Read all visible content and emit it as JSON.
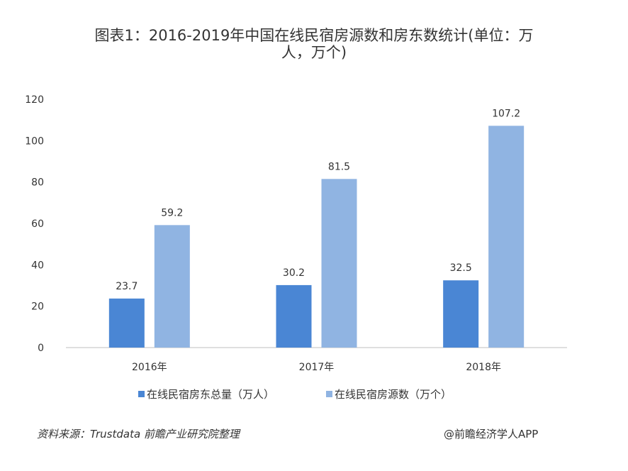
{
  "title_line1": "图表1：2016-2019年中国在线民宿房源数和房东数统计(单位：万",
  "title_line2": "人，万个)",
  "chart_data": {
    "type": "bar",
    "categories": [
      "2016年",
      "2017年",
      "2018年"
    ],
    "series": [
      {
        "name": "在线民宿房东总量（万人）",
        "values": [
          23.7,
          30.2,
          32.5
        ],
        "color": "#4a86d4"
      },
      {
        "name": "在线民宿房源数（万个）",
        "values": [
          59.2,
          81.5,
          107.2
        ],
        "color": "#90b4e2"
      }
    ],
    "ylim": [
      0,
      120
    ],
    "yticks": [
      0,
      20,
      40,
      60,
      80,
      100,
      120
    ],
    "grid": false,
    "legend": "bottom"
  },
  "source": "资料来源：Trustdata 前瞻产业研究院整理",
  "credit": "@前瞻经济学人APP"
}
